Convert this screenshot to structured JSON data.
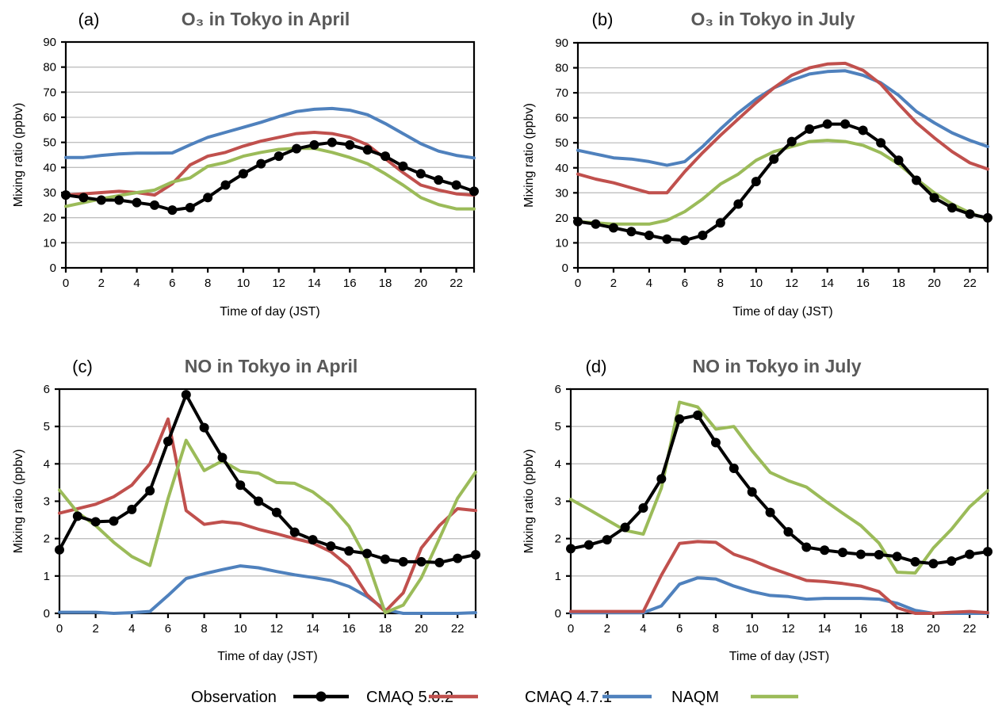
{
  "legend": {
    "items": [
      {
        "name": "Observation",
        "color": "#000000",
        "marker": "circle"
      },
      {
        "name": "CMAQ 5.0.2",
        "color": "#C0504D",
        "marker": "none"
      },
      {
        "name": "CMAQ 4.7.1",
        "color": "#4F81BD",
        "marker": "none"
      },
      {
        "name": "NAQM",
        "color": "#9BBB59",
        "marker": "none"
      }
    ]
  },
  "chart_data": [
    {
      "id": "a",
      "type": "line",
      "panel_label": "(a)",
      "title": "O₃ in Tokyo in April",
      "xlabel": "Time of day (JST)",
      "ylabel": "Mixing ratio (ppbv)",
      "xlim": [
        0,
        23
      ],
      "ylim": [
        0,
        90
      ],
      "yticks": [
        0,
        10,
        20,
        30,
        40,
        50,
        60,
        70,
        80,
        90
      ],
      "xticks": [
        0,
        2,
        4,
        6,
        8,
        10,
        12,
        14,
        16,
        18,
        20,
        22
      ],
      "grid": true,
      "x": [
        0,
        1,
        2,
        3,
        4,
        5,
        6,
        7,
        8,
        9,
        10,
        11,
        12,
        13,
        14,
        15,
        16,
        17,
        18,
        19,
        20,
        21,
        22,
        23
      ],
      "series": [
        {
          "name": "CMAQ 4.7.1",
          "values": [
            44,
            44,
            44.8,
            45.4,
            45.7,
            45.7,
            45.8,
            49,
            52,
            54,
            56,
            58,
            60.3,
            62.3,
            63.2,
            63.5,
            62.8,
            61,
            57.5,
            53.5,
            49.5,
            46.5,
            44.8,
            43.8
          ]
        },
        {
          "name": "CMAQ 5.0.2",
          "values": [
            29,
            29.5,
            30,
            30.5,
            30,
            29,
            33.5,
            41,
            44.5,
            46,
            48.5,
            50.5,
            52,
            53.5,
            54,
            53.5,
            52,
            49,
            43.5,
            38,
            33,
            31,
            29.5,
            29
          ]
        },
        {
          "name": "NAQM",
          "values": [
            24.5,
            26,
            27.5,
            28.8,
            30,
            31,
            34.2,
            35.8,
            40.5,
            42,
            44.5,
            46,
            47.2,
            47.6,
            47.6,
            46,
            44,
            41.5,
            37.5,
            33,
            28,
            25.2,
            23.5,
            23.5
          ]
        },
        {
          "name": "Observation",
          "values": [
            29,
            28,
            27,
            27,
            26,
            25,
            23,
            24,
            28,
            33,
            37.5,
            41.5,
            44.5,
            47.5,
            49,
            50,
            49,
            47,
            44.5,
            40.5,
            37.5,
            35,
            33,
            30.5
          ]
        }
      ]
    },
    {
      "id": "b",
      "type": "line",
      "panel_label": "(b)",
      "title": "O₃ in Tokyo in July",
      "xlabel": "Time of day (JST)",
      "ylabel": "Mixing ratio (ppbv)",
      "xlim": [
        0,
        23
      ],
      "ylim": [
        0,
        90
      ],
      "yticks": [
        0,
        10,
        20,
        30,
        40,
        50,
        60,
        70,
        80,
        90
      ],
      "xticks": [
        0,
        2,
        4,
        6,
        8,
        10,
        12,
        14,
        16,
        18,
        20,
        22
      ],
      "grid": true,
      "x": [
        0,
        1,
        2,
        3,
        4,
        5,
        6,
        7,
        8,
        9,
        10,
        11,
        12,
        13,
        14,
        15,
        16,
        17,
        18,
        19,
        20,
        21,
        22,
        23
      ],
      "series": [
        {
          "name": "CMAQ 4.7.1",
          "values": [
            47,
            45.5,
            44,
            43.5,
            42.5,
            41,
            42.5,
            48.5,
            55.5,
            62,
            67.5,
            72,
            75,
            77.5,
            78.5,
            78.8,
            77,
            74,
            69,
            62.5,
            58,
            54,
            51,
            48.5
          ]
        },
        {
          "name": "CMAQ 5.0.2",
          "values": [
            37.5,
            35.5,
            34,
            32,
            30,
            30,
            38.5,
            46,
            53,
            59.5,
            66,
            72,
            77,
            80,
            81.5,
            81.8,
            79,
            73.5,
            65.5,
            58,
            52,
            46.5,
            42,
            39.5
          ]
        },
        {
          "name": "NAQM",
          "values": [
            18.5,
            18,
            17.5,
            17.5,
            17.5,
            19,
            22.5,
            27.5,
            33.5,
            37.5,
            43,
            46.5,
            48.5,
            50.5,
            51,
            50.5,
            49,
            46,
            41.5,
            35.5,
            30,
            25.5,
            22,
            19.5
          ]
        },
        {
          "name": "Observation",
          "values": [
            18.5,
            17.5,
            16,
            14.5,
            13,
            11.5,
            11,
            13,
            18,
            25.5,
            34.5,
            43.5,
            50.5,
            55.5,
            57.5,
            57.5,
            55,
            50,
            43,
            35,
            28,
            24,
            21.5,
            20
          ]
        }
      ]
    },
    {
      "id": "c",
      "type": "line",
      "panel_label": "(c)",
      "title": "NO in Tokyo in April",
      "xlabel": "Time of day (JST)",
      "ylabel": "Mixing ratio (ppbv)",
      "xlim": [
        0,
        23
      ],
      "ylim": [
        0,
        6
      ],
      "yticks": [
        0,
        1,
        2,
        3,
        4,
        5,
        6
      ],
      "xticks": [
        0,
        2,
        4,
        6,
        8,
        10,
        12,
        14,
        16,
        18,
        20,
        22
      ],
      "grid": true,
      "x": [
        0,
        1,
        2,
        3,
        4,
        5,
        6,
        7,
        8,
        9,
        10,
        11,
        12,
        13,
        14,
        15,
        16,
        17,
        18,
        19,
        20,
        21,
        22,
        23
      ],
      "series": [
        {
          "name": "CMAQ 4.7.1",
          "values": [
            0.03,
            0.03,
            0.03,
            0.0,
            0.02,
            0.05,
            0.48,
            0.93,
            1.06,
            1.17,
            1.27,
            1.22,
            1.12,
            1.03,
            0.96,
            0.88,
            0.72,
            0.45,
            0.1,
            0.0,
            0.0,
            0.0,
            0.0,
            0.02
          ]
        },
        {
          "name": "CMAQ 5.0.2",
          "values": [
            2.68,
            2.8,
            2.92,
            3.12,
            3.43,
            4.0,
            5.2,
            2.75,
            2.38,
            2.45,
            2.4,
            2.25,
            2.13,
            2.0,
            1.88,
            1.65,
            1.25,
            0.5,
            0.05,
            0.55,
            1.75,
            2.35,
            2.8,
            2.75
          ]
        },
        {
          "name": "NAQM",
          "values": [
            3.3,
            2.7,
            2.35,
            1.9,
            1.52,
            1.28,
            3.07,
            4.63,
            3.82,
            4.08,
            3.8,
            3.75,
            3.5,
            3.48,
            3.25,
            2.88,
            2.33,
            1.43,
            0.02,
            0.22,
            0.95,
            2.0,
            3.08,
            3.78
          ]
        },
        {
          "name": "Observation",
          "values": [
            1.7,
            2.6,
            2.45,
            2.47,
            2.78,
            3.28,
            4.6,
            5.85,
            4.97,
            4.17,
            3.43,
            3.0,
            2.7,
            2.17,
            1.97,
            1.8,
            1.67,
            1.6,
            1.45,
            1.38,
            1.38,
            1.36,
            1.47,
            1.57
          ]
        }
      ]
    },
    {
      "id": "d",
      "type": "line",
      "panel_label": "(d)",
      "title": "NO in Tokyo in July",
      "xlabel": "Time of day (JST)",
      "ylabel": "Mixing ratio (ppbv)",
      "xlim": [
        0,
        23
      ],
      "ylim": [
        0,
        6
      ],
      "yticks": [
        0,
        1,
        2,
        3,
        4,
        5,
        6
      ],
      "xticks": [
        0,
        2,
        4,
        6,
        8,
        10,
        12,
        14,
        16,
        18,
        20,
        22
      ],
      "grid": true,
      "x": [
        0,
        1,
        2,
        3,
        4,
        5,
        6,
        7,
        8,
        9,
        10,
        11,
        12,
        13,
        14,
        15,
        16,
        17,
        18,
        19,
        20,
        21,
        22,
        23
      ],
      "series": [
        {
          "name": "CMAQ 4.7.1",
          "values": [
            0.02,
            0.02,
            0.02,
            0.02,
            0.02,
            0.2,
            0.78,
            0.95,
            0.92,
            0.73,
            0.58,
            0.48,
            0.45,
            0.38,
            0.4,
            0.4,
            0.4,
            0.38,
            0.27,
            0.08,
            0.0,
            0.0,
            0.0,
            0.0
          ]
        },
        {
          "name": "CMAQ 5.0.2",
          "values": [
            0.05,
            0.05,
            0.05,
            0.05,
            0.05,
            1.02,
            1.87,
            1.92,
            1.9,
            1.58,
            1.42,
            1.22,
            1.05,
            0.88,
            0.85,
            0.8,
            0.73,
            0.58,
            0.15,
            0.0,
            0.0,
            0.03,
            0.05,
            0.02
          ]
        },
        {
          "name": "NAQM",
          "values": [
            3.05,
            2.78,
            2.5,
            2.22,
            2.12,
            3.35,
            5.65,
            5.52,
            4.93,
            5.0,
            4.35,
            3.77,
            3.55,
            3.38,
            3.02,
            2.68,
            2.35,
            1.88,
            1.1,
            1.08,
            1.75,
            2.25,
            2.85,
            3.28
          ]
        },
        {
          "name": "Observation",
          "values": [
            1.73,
            1.83,
            1.97,
            2.3,
            2.82,
            3.6,
            5.2,
            5.3,
            4.57,
            3.88,
            3.25,
            2.7,
            2.18,
            1.77,
            1.69,
            1.63,
            1.58,
            1.57,
            1.52,
            1.38,
            1.33,
            1.4,
            1.58,
            1.65
          ]
        }
      ]
    }
  ]
}
